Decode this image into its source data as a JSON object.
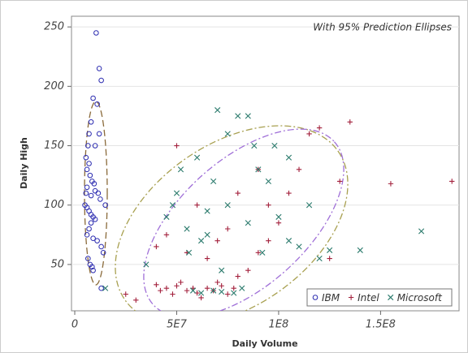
{
  "chart_data": {
    "type": "scatter",
    "annotation": "With 95% Prediction Ellipses",
    "x_label": "Daily Volume",
    "y_label": "Daily High",
    "xlim": [
      -1600000,
      188500000
    ],
    "ylim": [
      11,
      259
    ],
    "xticks": [
      0,
      {
        "value": 50000000,
        "label": "5E7"
      },
      {
        "value": 100000000,
        "label": "1E8"
      },
      {
        "value": 150000000,
        "label": "1.5E8"
      }
    ],
    "yticks": [
      50,
      100,
      150,
      200,
      250
    ],
    "grid": true,
    "legend": "bottom-right",
    "series": [
      {
        "name": "IBM",
        "color": "#2b2bb0",
        "marker": "circle",
        "x": [
          10500000.0,
          12000000.0,
          13000000.0,
          11000000.0,
          9000000.0,
          8000000.0,
          7000000.0,
          6500000.0,
          5500000.0,
          6000000.0,
          7500000.0,
          8500000.0,
          9500000.0,
          10000000.0,
          11500000.0,
          12500000.0,
          5000000.0,
          6000000.0,
          7000000.0,
          8000000.0,
          9000000.0,
          10000000.0,
          8000000.0,
          7000000.0,
          6000000.0,
          9000000.0,
          11000000.0,
          13000000.0,
          14000000.0,
          15000000.0,
          6500000.0,
          7500000.0,
          8500000.0,
          9000000.0,
          5500000.0,
          6000000.0,
          10000000.0,
          12000000.0,
          7000000.0,
          8000000.0,
          13000000.0
        ],
        "values": [
          245,
          215,
          205,
          185,
          190,
          170,
          160,
          150,
          140,
          130,
          125,
          120,
          118,
          112,
          110,
          105,
          100,
          98,
          95,
          92,
          90,
          88,
          85,
          80,
          75,
          72,
          70,
          65,
          60,
          100,
          55,
          50,
          48,
          45,
          110,
          115,
          150,
          160,
          135,
          108,
          30
        ]
      },
      {
        "name": "Intel",
        "color": "#a3203c",
        "marker": "plus",
        "x": [
          30000000.0,
          40000000.0,
          42000000.0,
          45000000.0,
          48000000.0,
          50000000.0,
          52000000.0,
          55000000.0,
          58000000.0,
          60000000.0,
          62000000.0,
          65000000.0,
          68000000.0,
          70000000.0,
          72000000.0,
          75000000.0,
          78000000.0,
          80000000.0,
          85000000.0,
          90000000.0,
          95000000.0,
          100000000.0,
          105000000.0,
          110000000.0,
          115000000.0,
          120000000.0,
          135000000.0,
          130000000.0,
          155000000.0,
          185000000.0,
          50000000.0,
          60000000.0,
          70000000.0,
          65000000.0,
          75000000.0,
          80000000.0,
          90000000.0,
          95000000.0,
          55000000.0,
          45000000.0,
          40000000.0,
          25000000.0,
          125000000.0
        ],
        "values": [
          20,
          33,
          28,
          30,
          25,
          32,
          35,
          28,
          30,
          26,
          22,
          30,
          28,
          35,
          32,
          25,
          30,
          40,
          45,
          60,
          70,
          85,
          110,
          130,
          160,
          165,
          170,
          120,
          118,
          120,
          150,
          100,
          70,
          55,
          80,
          110,
          130,
          100,
          60,
          75,
          65,
          25,
          55
        ]
      },
      {
        "name": "Microsoft",
        "color": "#2a7a6c",
        "marker": "cross",
        "x": [
          15000000.0,
          35000000.0,
          45000000.0,
          50000000.0,
          55000000.0,
          60000000.0,
          65000000.0,
          70000000.0,
          75000000.0,
          80000000.0,
          85000000.0,
          90000000.0,
          95000000.0,
          100000000.0,
          105000000.0,
          110000000.0,
          120000000.0,
          125000000.0,
          140000000.0,
          170000000.0,
          58000000.0,
          62000000.0,
          68000000.0,
          72000000.0,
          78000000.0,
          82000000.0,
          48000000.0,
          52000000.0,
          56000000.0,
          62000000.0,
          68000000.0,
          75000000.0,
          85000000.0,
          92000000.0,
          98000000.0,
          88000000.0,
          72000000.0,
          65000000.0,
          115000000.0,
          105000000.0
        ],
        "values": [
          30,
          50,
          90,
          110,
          80,
          140,
          95,
          180,
          160,
          175,
          175,
          130,
          120,
          90,
          70,
          65,
          55,
          62,
          62,
          78,
          28,
          26,
          28,
          27,
          26,
          30,
          100,
          130,
          60,
          70,
          120,
          100,
          85,
          60,
          150,
          150,
          45,
          75,
          100,
          140
        ]
      }
    ]
  }
}
